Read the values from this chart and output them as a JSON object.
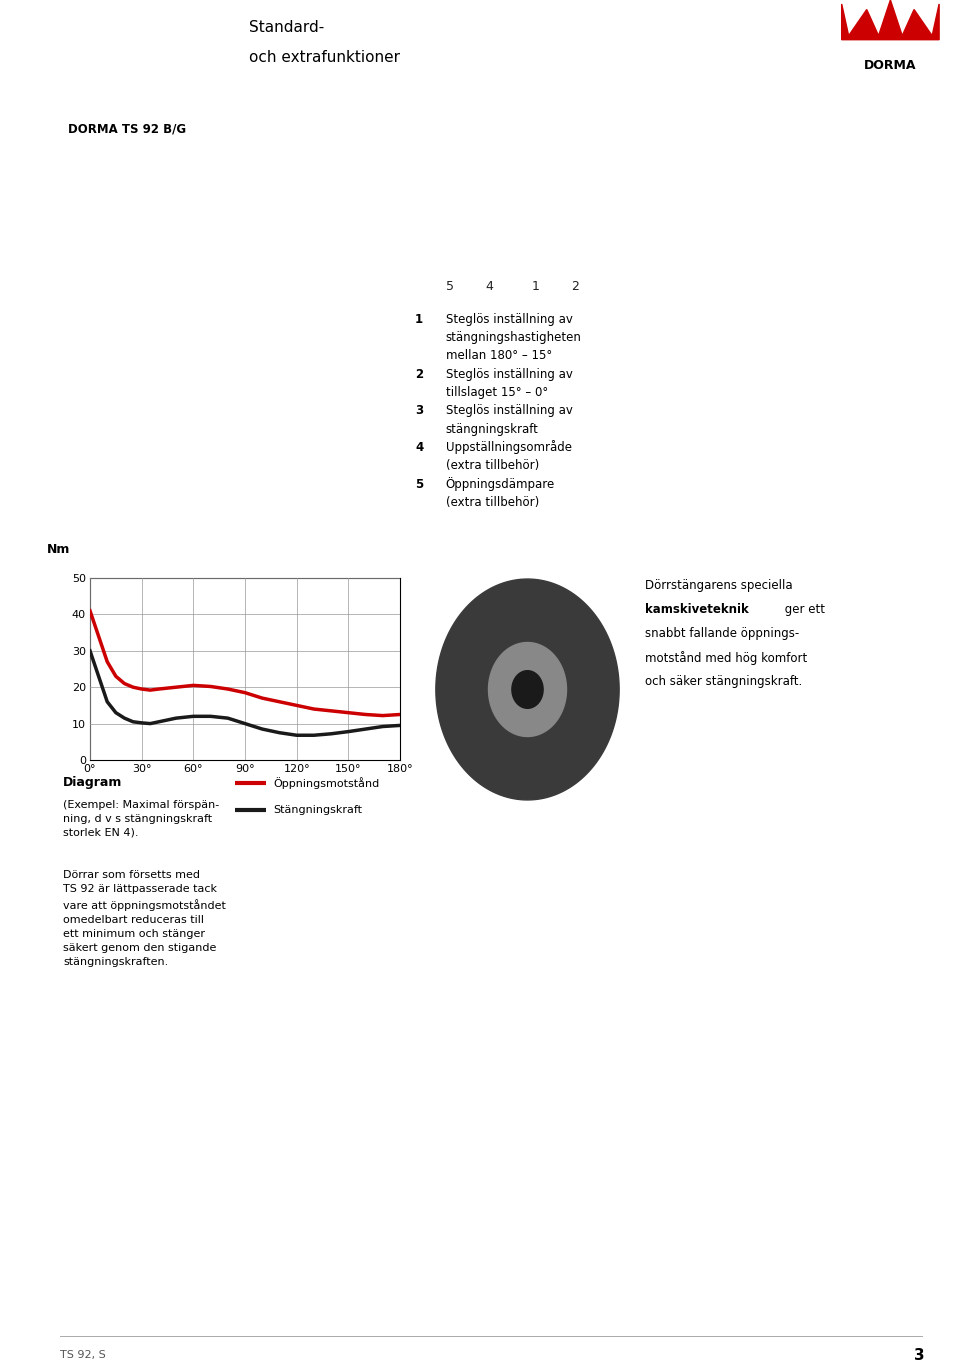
{
  "page_bg": "#ffffff",
  "header_bg": "#1a1a1a",
  "header_text": "DORMA TS 92",
  "header_subtext_line1": "Standard-",
  "header_subtext_line2": "och extrafunktioner",
  "header_text_color": "#ffffff",
  "subtext_color": "#000000",
  "page_number": "3",
  "footer_text": "TS 92, S",
  "section_label": "DORMA TS 92 B/G",
  "diagram_title": "Diagram",
  "diagram_subtitle_line1": "(Exempel: Maximal förspän-",
  "diagram_subtitle_line2": "ning, d v s stängningskraft",
  "diagram_subtitle_line3": "storlek EN 4).",
  "diagram_note_line1": "Dörrar som försetts med",
  "diagram_note_line2": "TS 92 är lättpasserade tack",
  "diagram_note_line3": "vare att öppningsmotståndet",
  "diagram_note_line4": "omedelbart reduceras till",
  "diagram_note_line5": "ett minimum och stänger",
  "diagram_note_line6": "säkert genom den stigande",
  "diagram_note_line7": "stängningskraften.",
  "legend_red_label": "Öppningsmotstånd",
  "legend_black_label": "Stängningskraft",
  "right_text_line1": "Dörrstängarens speciella",
  "right_text_bold": "kamskiveteknik",
  "right_text_after_bold": " ger ett",
  "right_text_line3": "snabbt fallande öppnings-",
  "right_text_line4": "motstånd med hög komfort",
  "right_text_line5": "och säker stängningskraft.",
  "num_text": "1  Steglös inställning av\n   stängningshastigheten\n   mellan 180° – 15°\n2  Steglös inställning av\n   tillslaget 15° – 0°\n3  Steglös inställning av\n   stängningskraft\n4  Uppställningsområde\n   (extra tillbehör)\n5  Öppningsdämpare\n   (extra tillbehör)",
  "ylabel": "Nm",
  "yticks": [
    0,
    10,
    20,
    30,
    40,
    50
  ],
  "xticks": [
    0,
    30,
    60,
    90,
    120,
    150,
    180
  ],
  "xtick_labels": [
    "0°",
    "30°",
    "60°",
    "90°",
    "120°",
    "150°",
    "180°"
  ],
  "ylim": [
    0,
    50
  ],
  "xlim": [
    0,
    180
  ],
  "red_curve_x": [
    0,
    5,
    10,
    15,
    20,
    25,
    30,
    35,
    40,
    50,
    60,
    70,
    80,
    90,
    100,
    110,
    120,
    130,
    140,
    150,
    160,
    170,
    180
  ],
  "red_curve_y": [
    41,
    34,
    27,
    23,
    21,
    20,
    19.5,
    19.2,
    19.5,
    20,
    20.5,
    20.2,
    19.5,
    18.5,
    17,
    16,
    15,
    14,
    13.5,
    13,
    12.5,
    12.2,
    12.5
  ],
  "black_curve_x": [
    0,
    5,
    10,
    15,
    20,
    25,
    30,
    35,
    40,
    50,
    60,
    70,
    80,
    90,
    100,
    110,
    120,
    130,
    140,
    150,
    160,
    170,
    180
  ],
  "black_curve_y": [
    30,
    23,
    16,
    13,
    11.5,
    10.5,
    10.2,
    10.0,
    10.5,
    11.5,
    12,
    12,
    11.5,
    10,
    8.5,
    7.5,
    6.8,
    6.8,
    7.2,
    7.8,
    8.5,
    9.2,
    9.5
  ],
  "grid_color": "#999999",
  "grid_linewidth": 0.5,
  "red_color": "#cc0000",
  "black_color": "#1a1a1a",
  "axis_linewidth": 0.8,
  "curve_linewidth": 2.5,
  "plot_bg": "#ffffff"
}
